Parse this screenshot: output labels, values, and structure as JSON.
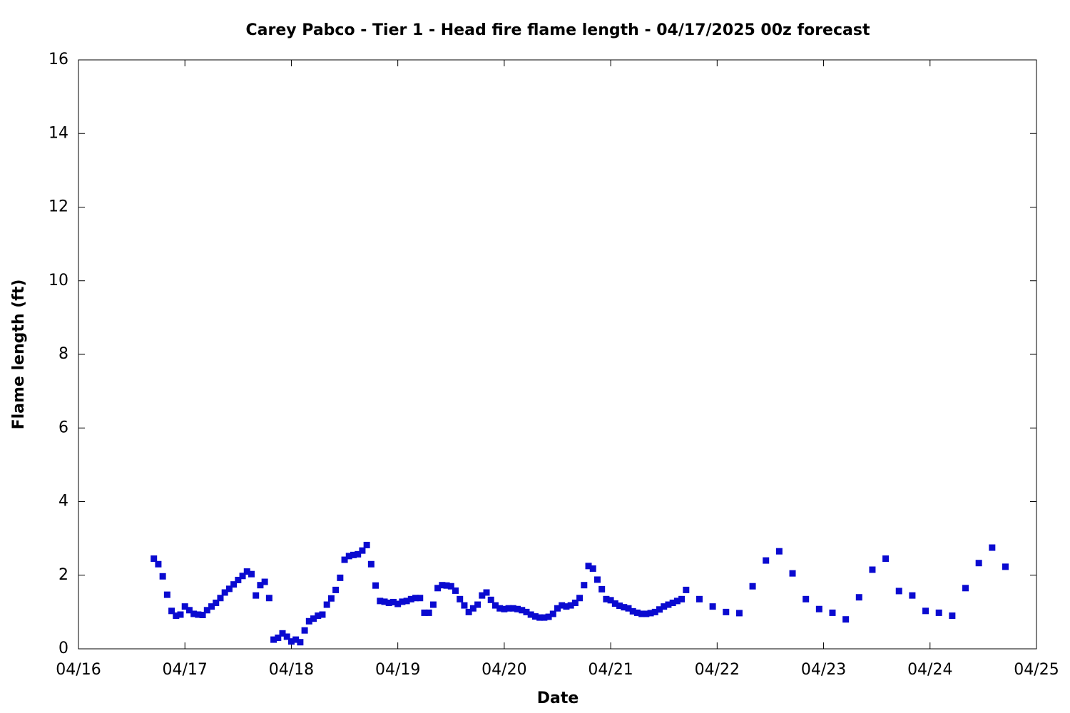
{
  "chart_data": {
    "type": "scatter",
    "title": "Carey Pabco - Tier 1 - Head fire flame length - 04/17/2025 00z forecast",
    "x_label": "Date",
    "y_label": "Flame length (ft)",
    "x": [
      17,
      18,
      19,
      20,
      21,
      22,
      23,
      24,
      25,
      26,
      27,
      28,
      29,
      30,
      31,
      32,
      33,
      34,
      35,
      36,
      37,
      38,
      39,
      40,
      41,
      42,
      43,
      44,
      45,
      46,
      47,
      48,
      49,
      50,
      51,
      52,
      53,
      54,
      55,
      56,
      57,
      58,
      59,
      60,
      61,
      62,
      63,
      64,
      65,
      66,
      67,
      68,
      69,
      70,
      71,
      72,
      73,
      74,
      75,
      76,
      77,
      78,
      79,
      80,
      81,
      82,
      83,
      84,
      85,
      86,
      87,
      88,
      89,
      90,
      91,
      92,
      93,
      94,
      95,
      96,
      97,
      98,
      99,
      100,
      101,
      102,
      103,
      104,
      105,
      106,
      107,
      108,
      109,
      110,
      111,
      112,
      113,
      114,
      115,
      116,
      117,
      118,
      119,
      120,
      121,
      122,
      123,
      124,
      125,
      126,
      127,
      128,
      129,
      130,
      131,
      132,
      133,
      134,
      135,
      136,
      137,
      140,
      143,
      146,
      149,
      152,
      155,
      158,
      161,
      164,
      167,
      170,
      173,
      176,
      179,
      182,
      185,
      188,
      191,
      194,
      197,
      200,
      203,
      206,
      209
    ],
    "values": [
      2.45,
      2.3,
      1.97,
      1.47,
      1.03,
      0.9,
      0.93,
      1.15,
      1.05,
      0.95,
      0.93,
      0.92,
      1.05,
      1.15,
      1.25,
      1.38,
      1.53,
      1.63,
      1.75,
      1.87,
      1.98,
      2.1,
      2.03,
      1.45,
      1.73,
      1.82,
      1.38,
      0.25,
      0.3,
      0.42,
      0.33,
      0.2,
      0.25,
      0.18,
      0.5,
      0.75,
      0.82,
      0.9,
      0.93,
      1.2,
      1.37,
      1.6,
      1.93,
      2.42,
      2.52,
      2.55,
      2.57,
      2.67,
      2.82,
      2.3,
      1.72,
      1.3,
      1.28,
      1.25,
      1.27,
      1.22,
      1.28,
      1.3,
      1.35,
      1.38,
      1.38,
      0.98,
      0.98,
      1.2,
      1.65,
      1.73,
      1.72,
      1.7,
      1.58,
      1.35,
      1.18,
      1.0,
      1.1,
      1.2,
      1.45,
      1.53,
      1.33,
      1.18,
      1.1,
      1.08,
      1.1,
      1.1,
      1.08,
      1.05,
      1.0,
      0.93,
      0.88,
      0.85,
      0.85,
      0.87,
      0.95,
      1.1,
      1.18,
      1.15,
      1.18,
      1.25,
      1.38,
      1.73,
      2.25,
      2.18,
      1.88,
      1.62,
      1.35,
      1.32,
      1.23,
      1.17,
      1.13,
      1.1,
      1.02,
      0.98,
      0.95,
      0.95,
      0.97,
      1.0,
      1.07,
      1.15,
      1.2,
      1.25,
      1.3,
      1.35,
      1.6,
      1.35,
      1.15,
      1.0,
      0.97,
      1.7,
      2.4,
      2.65,
      2.05,
      1.35,
      1.08,
      0.98,
      0.8,
      1.4,
      2.15,
      2.45,
      1.57,
      1.45,
      1.03,
      0.98,
      0.9,
      1.65,
      2.33,
      2.75,
      2.23
    ],
    "color": "#0a0ad0",
    "xlim": [
      0,
      216
    ],
    "xticks": [
      {
        "value": 0,
        "label": "04/16"
      },
      {
        "value": 24,
        "label": "04/17"
      },
      {
        "value": 48,
        "label": "04/18"
      },
      {
        "value": 72,
        "label": "04/19"
      },
      {
        "value": 96,
        "label": "04/20"
      },
      {
        "value": 120,
        "label": "04/21"
      },
      {
        "value": 144,
        "label": "04/22"
      },
      {
        "value": 168,
        "label": "04/23"
      },
      {
        "value": 192,
        "label": "04/24"
      },
      {
        "value": 216,
        "label": "04/25"
      }
    ],
    "ylim": [
      0,
      16
    ],
    "yticks": [
      0,
      2,
      4,
      6,
      8,
      10,
      12,
      14,
      16
    ],
    "grid": false
  }
}
